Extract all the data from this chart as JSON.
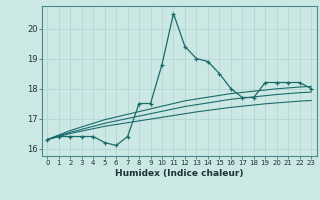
{
  "title": "",
  "xlabel": "Humidex (Indice chaleur)",
  "background_color": "#cce8e5",
  "grid_color": "#b8d8d5",
  "line_color": "#1a6b6b",
  "x_values": [
    0,
    1,
    2,
    3,
    4,
    5,
    6,
    7,
    8,
    9,
    10,
    11,
    12,
    13,
    14,
    15,
    16,
    17,
    18,
    19,
    20,
    21,
    22,
    23
  ],
  "main_y": [
    16.3,
    16.4,
    16.4,
    16.4,
    16.4,
    16.2,
    16.1,
    16.4,
    17.5,
    17.5,
    18.8,
    20.5,
    19.4,
    19.0,
    18.9,
    18.5,
    18.0,
    17.7,
    17.7,
    18.2,
    18.2,
    18.2,
    18.2,
    18.0
  ],
  "line1_y": [
    16.3,
    16.45,
    16.6,
    16.72,
    16.84,
    16.96,
    17.05,
    17.14,
    17.23,
    17.32,
    17.41,
    17.5,
    17.59,
    17.65,
    17.71,
    17.77,
    17.83,
    17.87,
    17.91,
    17.95,
    17.99,
    18.02,
    18.05,
    18.07
  ],
  "line2_y": [
    16.3,
    16.42,
    16.54,
    16.64,
    16.74,
    16.84,
    16.92,
    17.0,
    17.08,
    17.16,
    17.24,
    17.32,
    17.4,
    17.46,
    17.52,
    17.58,
    17.64,
    17.68,
    17.72,
    17.76,
    17.8,
    17.83,
    17.86,
    17.88
  ],
  "line3_y": [
    16.3,
    16.4,
    16.5,
    16.58,
    16.66,
    16.74,
    16.8,
    16.86,
    16.92,
    16.98,
    17.04,
    17.1,
    17.16,
    17.22,
    17.27,
    17.32,
    17.37,
    17.41,
    17.45,
    17.49,
    17.52,
    17.55,
    17.58,
    17.6
  ],
  "ylim": [
    15.75,
    20.75
  ],
  "yticks": [
    16,
    17,
    18,
    19,
    20
  ],
  "xticks": [
    0,
    1,
    2,
    3,
    4,
    5,
    6,
    7,
    8,
    9,
    10,
    11,
    12,
    13,
    14,
    15,
    16,
    17,
    18,
    19,
    20,
    21,
    22,
    23
  ]
}
